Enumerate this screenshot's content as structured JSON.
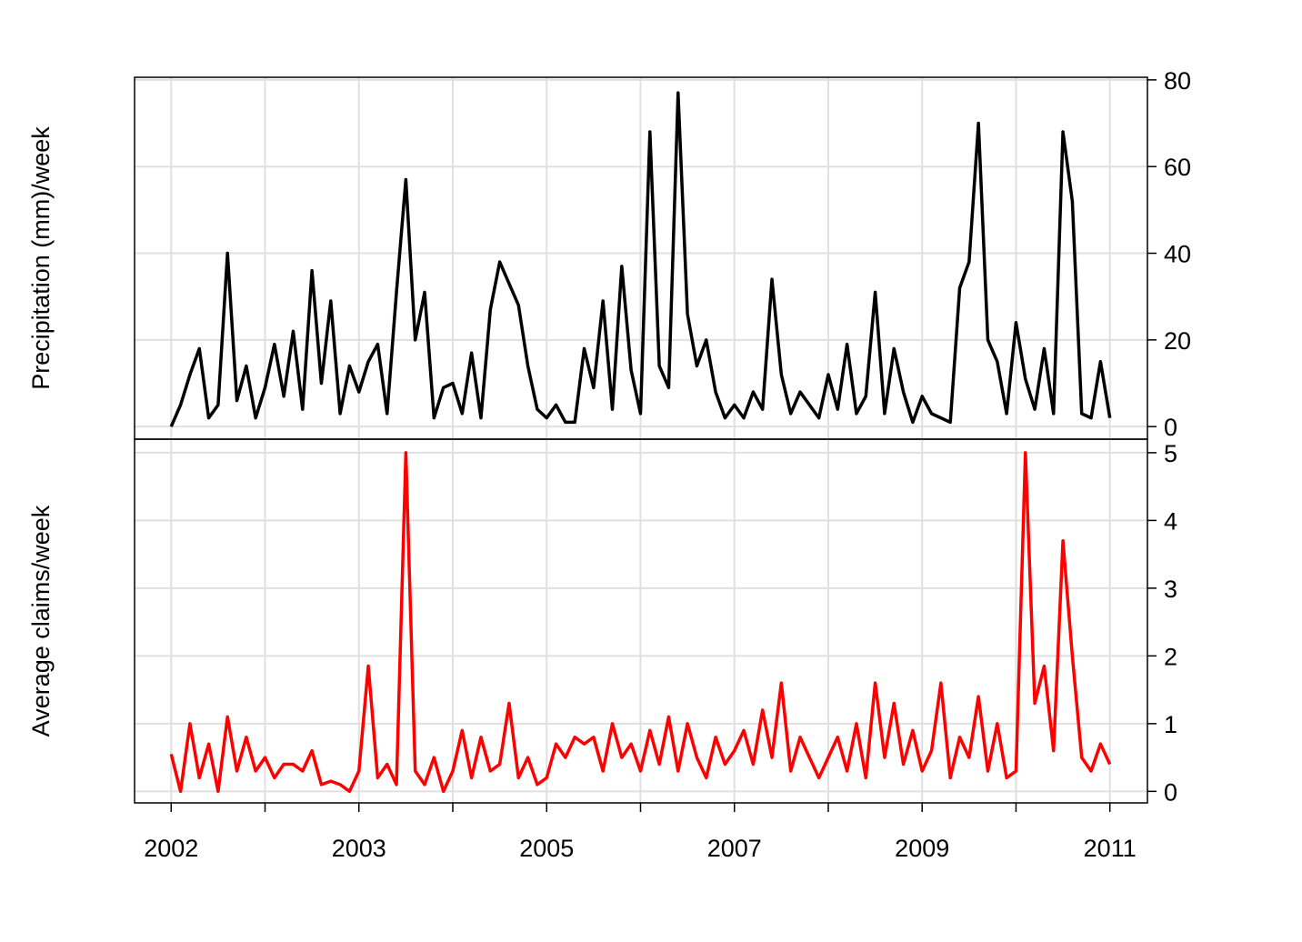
{
  "chart_data": [
    {
      "type": "line",
      "ylabel": "Precipitation (mm)/week",
      "x": [
        0,
        0.1,
        0.2,
        0.3,
        0.4,
        0.5,
        0.6,
        0.7,
        0.8,
        0.9,
        1,
        1.1,
        1.2,
        1.3,
        1.4,
        1.5,
        1.6,
        1.7,
        1.8,
        1.9,
        2,
        2.1,
        2.2,
        2.3,
        2.4,
        2.5,
        2.6,
        2.7,
        2.8,
        2.9,
        3,
        3.1,
        3.2,
        3.3,
        3.4,
        3.5,
        3.6,
        3.7,
        3.8,
        3.9,
        4,
        4.1,
        4.2,
        4.3,
        4.4,
        4.5,
        4.6,
        4.7,
        4.8,
        4.9,
        5,
        5.1,
        5.2,
        5.3,
        5.4,
        5.5,
        5.6,
        5.7,
        5.8,
        5.9,
        6,
        6.1,
        6.2,
        6.3,
        6.4,
        6.5,
        6.6,
        6.7,
        6.8,
        6.9,
        7,
        7.1,
        7.2,
        7.3,
        7.4,
        7.5,
        7.6,
        7.7,
        7.8,
        7.9,
        8,
        8.1,
        8.2,
        8.3,
        8.4,
        8.5,
        8.6,
        8.7,
        8.8,
        8.9,
        9,
        9.1,
        9.2,
        9.3,
        9.4,
        9.5,
        9.6,
        9.7,
        9.8,
        9.9,
        10
      ],
      "series": [
        {
          "color": "#000000",
          "values": [
            0,
            5,
            12,
            18,
            2,
            5,
            40,
            6,
            14,
            2,
            9,
            19,
            7,
            22,
            4,
            36,
            10,
            29,
            3,
            14,
            8,
            15,
            19,
            3,
            31,
            57,
            20,
            31,
            2,
            9,
            10,
            3,
            17,
            2,
            27,
            38,
            33,
            28,
            14,
            4,
            2,
            5,
            1,
            1,
            18,
            9,
            29,
            4,
            37,
            13,
            3,
            68,
            14,
            9,
            77,
            26,
            14,
            20,
            8,
            2,
            5,
            2,
            8,
            4,
            34,
            12,
            3,
            8,
            5,
            2,
            12,
            4,
            19,
            3,
            7,
            31,
            3,
            18,
            8,
            1,
            7,
            3,
            2,
            1,
            32,
            38,
            70,
            20,
            15,
            3,
            24,
            11,
            4,
            18,
            3,
            68,
            52,
            3,
            2,
            15,
            2
          ]
        }
      ],
      "xlim": [
        -0.39,
        10.4
      ],
      "ylim": [
        -2.9,
        80.6
      ],
      "yticks": [
        0,
        20,
        40,
        60,
        80
      ],
      "grid": true
    },
    {
      "type": "line",
      "ylabel": "Average claims/week",
      "x": [
        0,
        0.1,
        0.2,
        0.3,
        0.4,
        0.5,
        0.6,
        0.7,
        0.8,
        0.9,
        1,
        1.1,
        1.2,
        1.3,
        1.4,
        1.5,
        1.6,
        1.7,
        1.8,
        1.9,
        2,
        2.1,
        2.2,
        2.3,
        2.4,
        2.5,
        2.6,
        2.7,
        2.8,
        2.9,
        3,
        3.1,
        3.2,
        3.3,
        3.4,
        3.5,
        3.6,
        3.7,
        3.8,
        3.9,
        4,
        4.1,
        4.2,
        4.3,
        4.4,
        4.5,
        4.6,
        4.7,
        4.8,
        4.9,
        5,
        5.1,
        5.2,
        5.3,
        5.4,
        5.5,
        5.6,
        5.7,
        5.8,
        5.9,
        6,
        6.1,
        6.2,
        6.3,
        6.4,
        6.5,
        6.6,
        6.7,
        6.8,
        6.9,
        7,
        7.1,
        7.2,
        7.3,
        7.4,
        7.5,
        7.6,
        7.7,
        7.8,
        7.9,
        8,
        8.1,
        8.2,
        8.3,
        8.4,
        8.5,
        8.6,
        8.7,
        8.8,
        8.9,
        9,
        9.1,
        9.2,
        9.3,
        9.4,
        9.5,
        9.6,
        9.7,
        9.8,
        9.9,
        10
      ],
      "series": [
        {
          "color": "#ff0000",
          "values": [
            0.55,
            0,
            1,
            0.2,
            0.7,
            0,
            1.1,
            0.3,
            0.8,
            0.3,
            0.5,
            0.2,
            0.4,
            0.4,
            0.3,
            0.6,
            0.1,
            0.15,
            0.1,
            0,
            0.3,
            1.85,
            0.2,
            0.4,
            0.1,
            5,
            0.3,
            0.1,
            0.5,
            0,
            0.3,
            0.9,
            0.2,
            0.8,
            0.3,
            0.4,
            1.3,
            0.2,
            0.5,
            0.1,
            0.2,
            0.7,
            0.5,
            0.8,
            0.7,
            0.8,
            0.3,
            1,
            0.5,
            0.7,
            0.3,
            0.9,
            0.4,
            1.1,
            0.3,
            1,
            0.5,
            0.2,
            0.8,
            0.4,
            0.6,
            0.9,
            0.4,
            1.2,
            0.5,
            1.6,
            0.3,
            0.8,
            0.5,
            0.2,
            0.5,
            0.8,
            0.3,
            1,
            0.2,
            1.6,
            0.5,
            1.3,
            0.4,
            0.9,
            0.3,
            0.6,
            1.6,
            0.2,
            0.8,
            0.5,
            1.4,
            0.3,
            1,
            0.2,
            0.3,
            5,
            1.3,
            1.85,
            0.6,
            3.7,
            2,
            0.5,
            0.3,
            0.7,
            0.4
          ]
        }
      ],
      "xlim": [
        -0.39,
        10.4
      ],
      "ylim": [
        -0.17,
        5.2
      ],
      "yticks": [
        0,
        1,
        2,
        3,
        4,
        5
      ],
      "grid": true,
      "xticks": [
        {
          "value": 0,
          "label": "2002"
        },
        {
          "value": 1,
          "label": null
        },
        {
          "value": 2,
          "label": "2003"
        },
        {
          "value": 3,
          "label": null
        },
        {
          "value": 4,
          "label": "2005"
        },
        {
          "value": 5,
          "label": null
        },
        {
          "value": 6,
          "label": "2007"
        },
        {
          "value": 7,
          "label": null
        },
        {
          "value": 8,
          "label": "2009"
        },
        {
          "value": 9,
          "label": null
        },
        {
          "value": 10,
          "label": "2011"
        }
      ]
    }
  ]
}
